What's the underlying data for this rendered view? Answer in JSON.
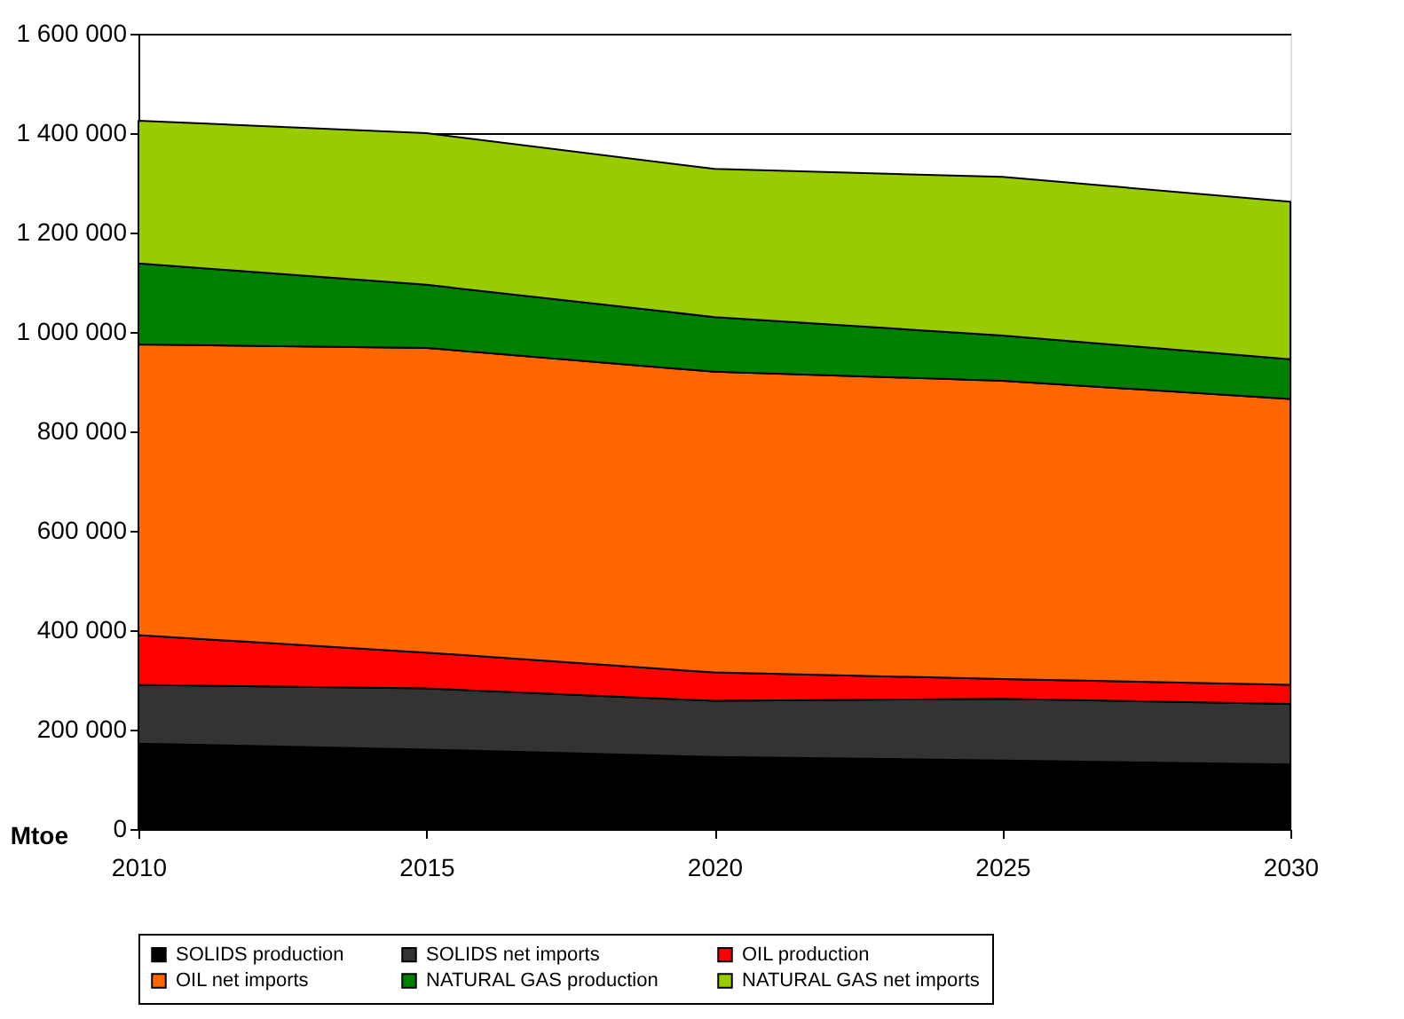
{
  "chart_data": {
    "type": "area",
    "stacked": true,
    "ylabel": "Mtoe",
    "x": [
      2010,
      2015,
      2020,
      2025,
      2030
    ],
    "series": [
      {
        "name": "SOLIDS production",
        "color": "#000000",
        "values": [
          172000,
          160000,
          145000,
          138000,
          130000
        ]
      },
      {
        "name": "SOLIDS net imports",
        "color": "#333333",
        "values": [
          118000,
          123000,
          113000,
          124000,
          122000
        ]
      },
      {
        "name": "OIL production",
        "color": "#ff0000",
        "values": [
          100000,
          72000,
          57000,
          40000,
          38000
        ]
      },
      {
        "name": "OIL net imports",
        "color": "#ff6600",
        "values": [
          585000,
          613000,
          605000,
          600000,
          575000
        ]
      },
      {
        "name": "NATURAL GAS production",
        "color": "#008000",
        "values": [
          163000,
          127000,
          110000,
          91000,
          80000
        ]
      },
      {
        "name": "NATURAL GAS net imports",
        "color": "#99cc00",
        "values": [
          287000,
          305000,
          298000,
          319000,
          317000
        ]
      }
    ],
    "xlim": [
      2010,
      2030
    ],
    "xticks": [
      2010,
      2015,
      2020,
      2025,
      2030
    ],
    "ylim": [
      0,
      1600000
    ],
    "yticks": [
      0,
      {
        "value": 200000,
        "label": "200 000"
      },
      {
        "value": 400000,
        "label": "400 000"
      },
      {
        "value": 600000,
        "label": "600 000"
      },
      {
        "value": 800000,
        "label": "800 000"
      },
      {
        "value": 1000000,
        "label": "1 000 000"
      },
      {
        "value": 1200000,
        "label": "1 200 000"
      },
      {
        "value": 1400000,
        "label": "1 400 000"
      },
      {
        "value": 1600000,
        "label": "1 600 000"
      }
    ],
    "grid": "y",
    "legend": "bottom"
  }
}
